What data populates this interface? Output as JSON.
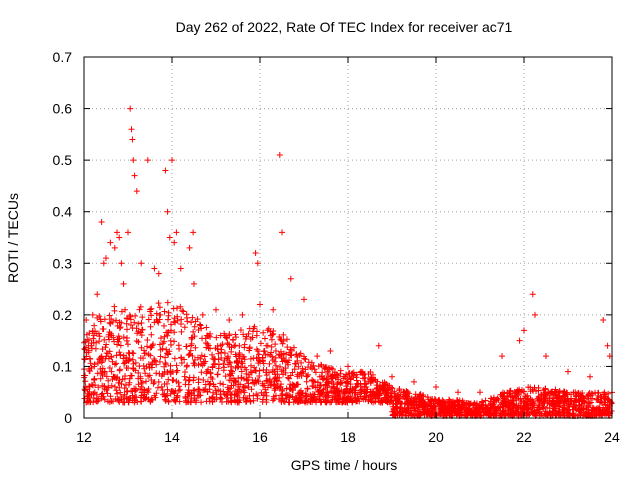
{
  "chart_data": {
    "type": "scatter",
    "title": "Day 262 of 2022, Rate Of TEC Index for receiver ac71",
    "xlabel": "GPS time / hours",
    "ylabel": "ROTI / TECUs",
    "xlim": [
      12,
      24
    ],
    "ylim": [
      0,
      0.7
    ],
    "xticks": [
      12,
      14,
      16,
      18,
      20,
      22,
      24
    ],
    "xtick_labels": [
      "12",
      "14",
      "16",
      "18",
      "20",
      "22",
      "24"
    ],
    "yticks": [
      0,
      0.1,
      0.2,
      0.3,
      0.4,
      0.5,
      0.6,
      0.7
    ],
    "ytick_labels": [
      "0",
      "0.1",
      "0.2",
      "0.3",
      "0.4",
      "0.5",
      "0.6",
      "0.7"
    ],
    "grid": true,
    "marker": "+",
    "color": "#ff0000",
    "series": [
      {
        "name": "ROTI",
        "x": [
          12.05,
          12.1,
          12.2,
          12.3,
          12.4,
          12.45,
          12.5,
          12.6,
          12.7,
          12.75,
          12.8,
          12.85,
          12.9,
          13.0,
          13.05,
          13.08,
          13.1,
          13.12,
          13.15,
          13.2,
          13.3,
          13.45,
          13.6,
          13.7,
          13.85,
          13.9,
          13.95,
          14.0,
          14.05,
          14.1,
          14.2,
          14.4,
          14.48,
          14.5,
          14.7,
          15.0,
          15.3,
          15.6,
          15.9,
          15.95,
          16.0,
          16.3,
          16.45,
          16.5,
          16.7,
          17.0,
          17.3,
          17.6,
          18.0,
          18.3,
          18.7,
          19.0,
          19.5,
          20.0,
          20.5,
          21.0,
          21.5,
          21.9,
          22.0,
          22.2,
          22.25,
          22.5,
          23.0,
          23.5,
          23.8,
          23.9,
          23.95
        ],
        "y": [
          0.19,
          0.14,
          0.2,
          0.24,
          0.38,
          0.3,
          0.31,
          0.34,
          0.33,
          0.36,
          0.35,
          0.3,
          0.26,
          0.36,
          0.6,
          0.56,
          0.54,
          0.5,
          0.47,
          0.44,
          0.3,
          0.5,
          0.29,
          0.28,
          0.48,
          0.4,
          0.35,
          0.5,
          0.34,
          0.36,
          0.29,
          0.33,
          0.36,
          0.26,
          0.2,
          0.21,
          0.19,
          0.2,
          0.32,
          0.3,
          0.22,
          0.21,
          0.51,
          0.36,
          0.27,
          0.23,
          0.12,
          0.13,
          0.1,
          0.09,
          0.14,
          0.08,
          0.07,
          0.06,
          0.05,
          0.05,
          0.12,
          0.15,
          0.17,
          0.24,
          0.2,
          0.12,
          0.09,
          0.08,
          0.19,
          0.14,
          0.12
        ]
      }
    ]
  }
}
